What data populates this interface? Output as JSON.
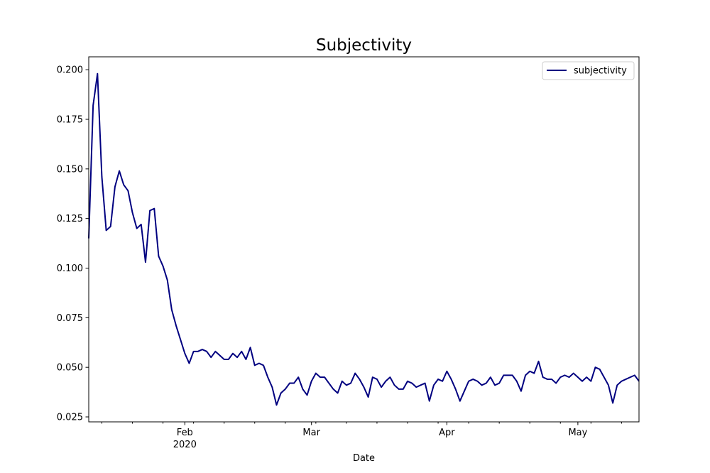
{
  "chart_data": {
    "type": "line",
    "title": "Subjectivity",
    "xlabel": "Date",
    "ylabel": "",
    "x_start": "2020-01-10",
    "x_end": "2020-05-15",
    "ylim": [
      0.0225,
      0.2065
    ],
    "y_ticks": [
      0.025,
      0.05,
      0.075,
      0.1,
      0.125,
      0.15,
      0.175,
      0.2
    ],
    "y_tick_labels": [
      "0.025",
      "0.050",
      "0.075",
      "0.100",
      "0.125",
      "0.150",
      "0.175",
      "0.200"
    ],
    "x_major_ticks": [
      {
        "date": "2020-02-01",
        "label": "Feb",
        "sublabel": "2020"
      },
      {
        "date": "2020-03-01",
        "label": "Mar",
        "sublabel": ""
      },
      {
        "date": "2020-04-01",
        "label": "Apr",
        "sublabel": ""
      },
      {
        "date": "2020-05-01",
        "label": "May",
        "sublabel": ""
      }
    ],
    "legend": {
      "position": "top-right"
    },
    "series": [
      {
        "name": "subjectivity",
        "color": "#000080",
        "x": [
          "2020-01-10",
          "2020-01-11",
          "2020-01-12",
          "2020-01-13",
          "2020-01-14",
          "2020-01-15",
          "2020-01-16",
          "2020-01-17",
          "2020-01-18",
          "2020-01-19",
          "2020-01-20",
          "2020-01-21",
          "2020-01-22",
          "2020-01-23",
          "2020-01-24",
          "2020-01-25",
          "2020-01-26",
          "2020-01-27",
          "2020-01-28",
          "2020-01-29",
          "2020-01-30",
          "2020-01-31",
          "2020-02-01",
          "2020-02-02",
          "2020-02-03",
          "2020-02-04",
          "2020-02-05",
          "2020-02-06",
          "2020-02-07",
          "2020-02-08",
          "2020-02-09",
          "2020-02-10",
          "2020-02-11",
          "2020-02-12",
          "2020-02-13",
          "2020-02-14",
          "2020-02-15",
          "2020-02-16",
          "2020-02-17",
          "2020-02-18",
          "2020-02-19",
          "2020-02-20",
          "2020-02-21",
          "2020-02-22",
          "2020-02-23",
          "2020-02-24",
          "2020-02-25",
          "2020-02-26",
          "2020-02-27",
          "2020-02-28",
          "2020-02-29",
          "2020-03-01",
          "2020-03-02",
          "2020-03-03",
          "2020-03-04",
          "2020-03-05",
          "2020-03-06",
          "2020-03-07",
          "2020-03-08",
          "2020-03-09",
          "2020-03-10",
          "2020-03-11",
          "2020-03-12",
          "2020-03-13",
          "2020-03-14",
          "2020-03-15",
          "2020-03-16",
          "2020-03-17",
          "2020-03-18",
          "2020-03-19",
          "2020-03-20",
          "2020-03-21",
          "2020-03-22",
          "2020-03-23",
          "2020-03-24",
          "2020-03-25",
          "2020-03-26",
          "2020-03-27",
          "2020-03-28",
          "2020-03-29",
          "2020-03-30",
          "2020-03-31",
          "2020-04-01",
          "2020-04-02",
          "2020-04-03",
          "2020-04-04",
          "2020-04-05",
          "2020-04-06",
          "2020-04-07",
          "2020-04-08",
          "2020-04-09",
          "2020-04-10",
          "2020-04-11",
          "2020-04-12",
          "2020-04-13",
          "2020-04-14",
          "2020-04-15",
          "2020-04-16",
          "2020-04-17",
          "2020-04-18",
          "2020-04-19",
          "2020-04-20",
          "2020-04-21",
          "2020-04-22",
          "2020-04-23",
          "2020-04-24",
          "2020-04-25",
          "2020-04-26",
          "2020-04-27",
          "2020-04-28",
          "2020-04-29",
          "2020-04-30",
          "2020-05-01",
          "2020-05-02",
          "2020-05-03",
          "2020-05-04",
          "2020-05-05",
          "2020-05-06",
          "2020-05-07",
          "2020-05-08",
          "2020-05-09",
          "2020-05-10",
          "2020-05-11",
          "2020-05-12",
          "2020-05-13",
          "2020-05-14",
          "2020-05-15"
        ],
        "values": [
          0.115,
          0.182,
          0.198,
          0.146,
          0.119,
          0.121,
          0.141,
          0.149,
          0.142,
          0.139,
          0.128,
          0.12,
          0.122,
          0.103,
          0.129,
          0.13,
          0.106,
          0.101,
          0.094,
          0.079,
          0.071,
          0.064,
          0.057,
          0.052,
          0.058,
          0.058,
          0.059,
          0.058,
          0.055,
          0.058,
          0.056,
          0.054,
          0.054,
          0.057,
          0.055,
          0.058,
          0.054,
          0.06,
          0.051,
          0.052,
          0.051,
          0.045,
          0.04,
          0.031,
          0.037,
          0.039,
          0.042,
          0.042,
          0.045,
          0.039,
          0.036,
          0.043,
          0.047,
          0.045,
          0.045,
          0.042,
          0.039,
          0.037,
          0.043,
          0.041,
          0.042,
          0.047,
          0.044,
          0.04,
          0.035,
          0.045,
          0.044,
          0.04,
          0.043,
          0.045,
          0.041,
          0.039,
          0.039,
          0.043,
          0.042,
          0.04,
          0.041,
          0.042,
          0.033,
          0.041,
          0.044,
          0.043,
          0.048,
          0.044,
          0.039,
          0.033,
          0.038,
          0.043,
          0.044,
          0.043,
          0.041,
          0.042,
          0.045,
          0.041,
          0.042,
          0.046,
          0.046,
          0.046,
          0.043,
          0.038,
          0.046,
          0.048,
          0.047,
          0.053,
          0.045,
          0.044,
          0.044,
          0.042,
          0.045,
          0.046,
          0.045,
          0.047,
          0.045,
          0.043,
          0.045,
          0.043,
          0.05,
          0.049,
          0.045,
          0.041,
          0.032,
          0.041,
          0.043,
          0.044,
          0.045,
          0.046,
          0.043
        ]
      }
    ]
  }
}
